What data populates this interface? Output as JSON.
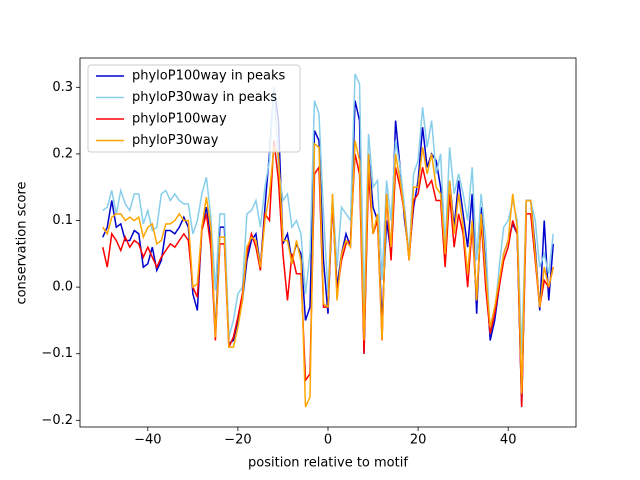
{
  "chart_data": {
    "type": "line",
    "xlabel": "position relative to motif",
    "ylabel": "conservation score",
    "legend": "upper left",
    "xlim": [
      -55.05,
      55.05
    ],
    "ylim": [
      -0.21,
      0.344
    ],
    "xticks": [
      {
        "value": -40,
        "label": "−40"
      },
      {
        "value": -20,
        "label": "−20"
      },
      0,
      20,
      40
    ],
    "yticks": [
      {
        "value": -0.2,
        "label": "−0.2"
      },
      {
        "value": -0.1,
        "label": "−0.1"
      },
      {
        "value": 0,
        "label": "0.0"
      },
      0.1,
      0.2,
      0.3
    ],
    "x": [
      -50,
      -49,
      -48,
      -47,
      -46,
      -45,
      -44,
      -43,
      -42,
      -41,
      -40,
      -39,
      -38,
      -37,
      -36,
      -35,
      -34,
      -33,
      -32,
      -31,
      -30,
      -29,
      -28,
      -27,
      -26,
      -25,
      -24,
      -23,
      -22,
      -21,
      -20,
      -19,
      -18,
      -17,
      -16,
      -15,
      -14,
      -13,
      -12,
      -11,
      -10,
      -9,
      -8,
      -7,
      -6,
      -5,
      -4,
      -3,
      -2,
      -1,
      0,
      1,
      2,
      3,
      4,
      5,
      6,
      7,
      8,
      9,
      10,
      11,
      12,
      13,
      14,
      15,
      16,
      17,
      18,
      19,
      20,
      21,
      22,
      23,
      24,
      25,
      26,
      27,
      28,
      29,
      30,
      31,
      32,
      33,
      34,
      35,
      36,
      37,
      38,
      39,
      40,
      41,
      42,
      43,
      44,
      45,
      46,
      47,
      48,
      49,
      50
    ],
    "series": [
      {
        "name": "phyloP100way in peaks",
        "color": "#0000cd",
        "values": [
          0.075,
          0.09,
          0.13,
          0.09,
          0.095,
          0.07,
          0.07,
          0.085,
          0.08,
          0.03,
          0.035,
          0.06,
          0.025,
          0.04,
          0.085,
          0.085,
          0.08,
          0.09,
          0.105,
          0.09,
          -0.01,
          -0.035,
          0.09,
          0.12,
          0.07,
          -0.07,
          0.09,
          0.09,
          -0.085,
          -0.08,
          -0.05,
          -0.02,
          0.04,
          0.07,
          0.08,
          0.03,
          0.12,
          0.2,
          0.3,
          0.25,
          0.065,
          0.08,
          0.04,
          0.065,
          0.05,
          -0.05,
          -0.03,
          0.235,
          0.22,
          0.04,
          -0.04,
          0.13,
          0.0,
          0.05,
          0.08,
          0.06,
          0.28,
          0.25,
          -0.1,
          0.2,
          0.12,
          0.1,
          -0.05,
          0.1,
          0.05,
          0.25,
          0.18,
          0.1,
          0.05,
          0.12,
          0.16,
          0.24,
          0.18,
          0.2,
          0.19,
          0.15,
          0.05,
          0.16,
          0.09,
          0.16,
          0.11,
          0.06,
          0.14,
          -0.04,
          0.12,
          0.03,
          -0.08,
          -0.05,
          0.0,
          0.05,
          0.07,
          0.095,
          0.08,
          -0.18,
          0.13,
          0.13,
          0.06,
          -0.035,
          0.1,
          -0.02,
          0.065
        ]
      },
      {
        "name": "phyloP30way in peaks",
        "color": "#87ceeb",
        "values": [
          0.115,
          0.12,
          0.145,
          0.11,
          0.145,
          0.125,
          0.115,
          0.14,
          0.14,
          0.095,
          0.115,
          0.085,
          0.09,
          0.14,
          0.145,
          0.13,
          0.14,
          0.13,
          0.125,
          0.125,
          0.08,
          0.1,
          0.14,
          0.165,
          0.105,
          -0.005,
          0.11,
          0.11,
          -0.075,
          -0.05,
          -0.01,
          0.0,
          0.11,
          0.115,
          0.13,
          0.09,
          0.15,
          0.19,
          0.3,
          0.18,
          0.13,
          0.14,
          0.09,
          0.1,
          0.08,
          -0.01,
          0.05,
          0.28,
          0.26,
          0.11,
          -0.01,
          0.14,
          0.03,
          0.12,
          0.11,
          0.1,
          0.32,
          0.305,
          -0.03,
          0.23,
          0.15,
          0.16,
          0.01,
          0.16,
          0.1,
          0.22,
          0.18,
          0.12,
          0.05,
          0.17,
          0.19,
          0.27,
          0.21,
          0.25,
          0.17,
          0.2,
          0.06,
          0.21,
          0.14,
          0.17,
          0.14,
          0.1,
          0.18,
          0.04,
          0.14,
          0.07,
          -0.07,
          -0.04,
          0.03,
          0.09,
          0.1,
          0.13,
          0.1,
          -0.1,
          0.13,
          0.13,
          0.1,
          0.03,
          0.05,
          0.02,
          0.08
        ]
      },
      {
        "name": "phyloP100way",
        "color": "#ff0000",
        "values": [
          0.06,
          0.03,
          0.08,
          0.07,
          0.055,
          0.075,
          0.06,
          0.07,
          0.065,
          0.045,
          0.06,
          0.045,
          0.03,
          0.045,
          0.055,
          0.065,
          0.06,
          0.07,
          0.08,
          0.07,
          0.0,
          -0.015,
          0.085,
          0.11,
          0.06,
          -0.08,
          0.065,
          0.065,
          -0.09,
          -0.075,
          -0.045,
          -0.01,
          0.05,
          0.08,
          0.06,
          0.025,
          0.11,
          0.1,
          0.22,
          0.16,
          0.05,
          -0.02,
          0.05,
          0.02,
          0.02,
          -0.14,
          -0.13,
          0.17,
          0.18,
          -0.03,
          -0.03,
          0.13,
          -0.01,
          0.04,
          0.065,
          0.07,
          0.2,
          0.17,
          -0.1,
          0.17,
          0.08,
          0.1,
          -0.08,
          0.14,
          0.04,
          0.18,
          0.15,
          0.11,
          0.04,
          0.13,
          0.14,
          0.18,
          0.15,
          0.16,
          0.13,
          0.13,
          0.03,
          0.14,
          0.06,
          0.11,
          0.08,
          0.0,
          0.09,
          -0.02,
          0.1,
          0.0,
          -0.07,
          -0.04,
          0.0,
          0.04,
          0.06,
          0.1,
          0.08,
          -0.18,
          0.11,
          0.11,
          0.04,
          -0.03,
          0.01,
          0.0,
          0.03
        ]
      },
      {
        "name": "phyloP30way",
        "color": "#ffa500",
        "values": [
          0.09,
          0.08,
          0.105,
          0.11,
          0.11,
          0.1,
          0.105,
          0.1,
          0.105,
          0.075,
          0.09,
          0.095,
          0.065,
          0.07,
          0.095,
          0.095,
          0.1,
          0.11,
          0.1,
          0.1,
          0.0,
          0.005,
          0.09,
          0.135,
          0.09,
          -0.075,
          0.075,
          0.075,
          -0.09,
          -0.09,
          -0.06,
          -0.02,
          0.06,
          0.075,
          0.07,
          0.03,
          0.1,
          0.14,
          0.21,
          0.2,
          0.07,
          0.07,
          0.035,
          0.07,
          0.04,
          -0.18,
          -0.165,
          0.215,
          0.21,
          -0.025,
          -0.03,
          0.14,
          -0.02,
          0.05,
          0.07,
          0.06,
          0.22,
          0.19,
          -0.08,
          0.2,
          0.08,
          0.11,
          -0.08,
          0.14,
          0.06,
          0.2,
          0.16,
          0.11,
          0.04,
          0.15,
          0.15,
          0.21,
          0.17,
          0.2,
          0.15,
          0.14,
          0.05,
          0.16,
          0.08,
          0.14,
          0.09,
          0.02,
          0.1,
          -0.02,
          0.11,
          0.02,
          -0.06,
          -0.03,
          0.01,
          0.05,
          0.07,
          0.14,
          0.09,
          -0.16,
          0.13,
          0.13,
          0.05,
          -0.03,
          0.03,
          0.0,
          0.03
        ]
      }
    ]
  }
}
